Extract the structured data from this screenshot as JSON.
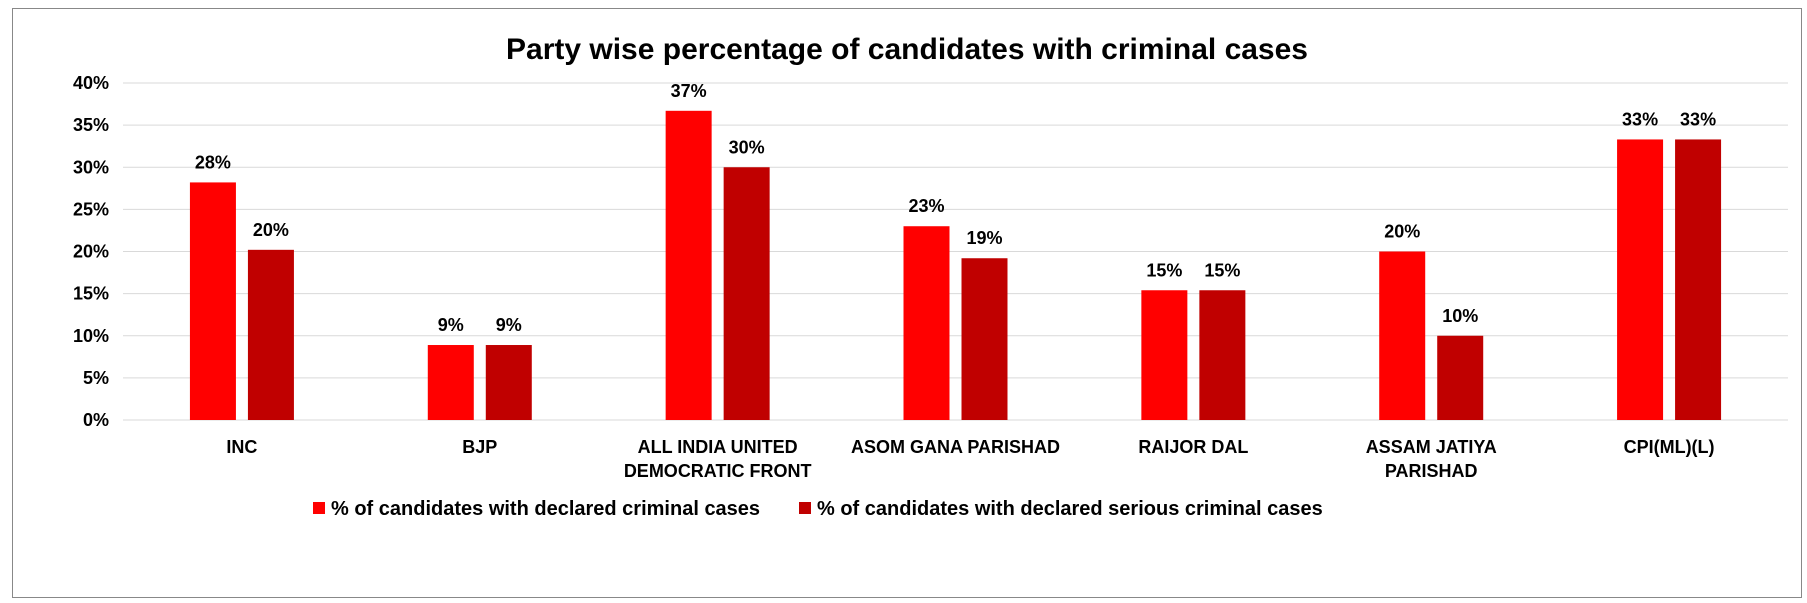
{
  "chart_data": {
    "type": "bar",
    "title": "Party wise percentage of candidates with criminal cases",
    "xlabel": "",
    "ylabel": "",
    "ylim": [
      0,
      40
    ],
    "y_ticks": [
      "0%",
      "5%",
      "10%",
      "15%",
      "20%",
      "25%",
      "30%",
      "35%",
      "40%"
    ],
    "grid": true,
    "legend_position": "bottom",
    "categories": [
      [
        "INC"
      ],
      [
        "BJP"
      ],
      [
        "ALL INDIA UNITED",
        "DEMOCRATIC FRONT"
      ],
      [
        "ASOM GANA PARISHAD"
      ],
      [
        "RAIJOR DAL"
      ],
      [
        "ASSAM JATIYA",
        "PARISHAD"
      ],
      [
        "CPI(ML)(L)"
      ]
    ],
    "series": [
      {
        "name": "% of candidates with declared criminal cases",
        "color": "#ff0000",
        "values": [
          28.2,
          8.9,
          36.7,
          23.0,
          15.4,
          20.0,
          33.3
        ],
        "labels": [
          "28%",
          "9%",
          "37%",
          "23%",
          "15%",
          "20%",
          "33%"
        ]
      },
      {
        "name": "% of candidates with declared serious criminal cases",
        "color": "#c00000",
        "values": [
          20.2,
          8.9,
          30.0,
          19.2,
          15.4,
          10.0,
          33.3
        ],
        "labels": [
          "20%",
          "9%",
          "30%",
          "19%",
          "15%",
          "10%",
          "33%"
        ]
      }
    ]
  }
}
